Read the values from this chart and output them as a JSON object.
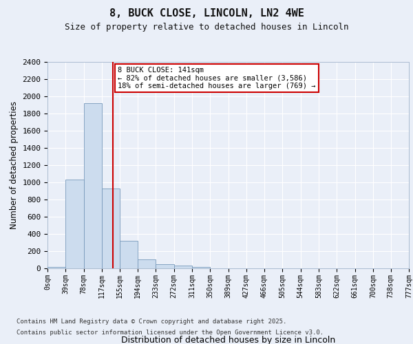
{
  "title1": "8, BUCK CLOSE, LINCOLN, LN2 4WE",
  "title2": "Size of property relative to detached houses in Lincoln",
  "xlabel": "Distribution of detached houses by size in Lincoln",
  "ylabel": "Number of detached properties",
  "bin_edges": [
    0,
    39,
    78,
    117,
    155,
    194,
    233,
    272,
    311,
    350,
    389,
    427,
    466,
    505,
    544,
    583,
    622,
    661,
    700,
    738,
    777
  ],
  "bar_heights": [
    20,
    1030,
    1920,
    930,
    320,
    105,
    50,
    30,
    20,
    0,
    0,
    0,
    0,
    0,
    0,
    0,
    0,
    0,
    0,
    0
  ],
  "bar_color": "#ccdcee",
  "bar_edge_color": "#7799bb",
  "red_line_x": 141,
  "red_line_color": "#cc0000",
  "annotation_text": "8 BUCK CLOSE: 141sqm\n← 82% of detached houses are smaller (3,586)\n18% of semi-detached houses are larger (769) →",
  "annotation_box_color": "#ffffff",
  "annotation_box_edge_color": "#cc0000",
  "ylim": [
    0,
    2400
  ],
  "yticks": [
    0,
    200,
    400,
    600,
    800,
    1000,
    1200,
    1400,
    1600,
    1800,
    2000,
    2200,
    2400
  ],
  "tick_labels": [
    "0sqm",
    "39sqm",
    "78sqm",
    "117sqm",
    "155sqm",
    "194sqm",
    "233sqm",
    "272sqm",
    "311sqm",
    "350sqm",
    "389sqm",
    "427sqm",
    "466sqm",
    "505sqm",
    "544sqm",
    "583sqm",
    "622sqm",
    "661sqm",
    "700sqm",
    "738sqm",
    "777sqm"
  ],
  "background_color": "#eaeff8",
  "plot_bg_color": "#eaeff8",
  "grid_color": "#ffffff",
  "footer_line1": "Contains HM Land Registry data © Crown copyright and database right 2025.",
  "footer_line2": "Contains public sector information licensed under the Open Government Licence v3.0."
}
